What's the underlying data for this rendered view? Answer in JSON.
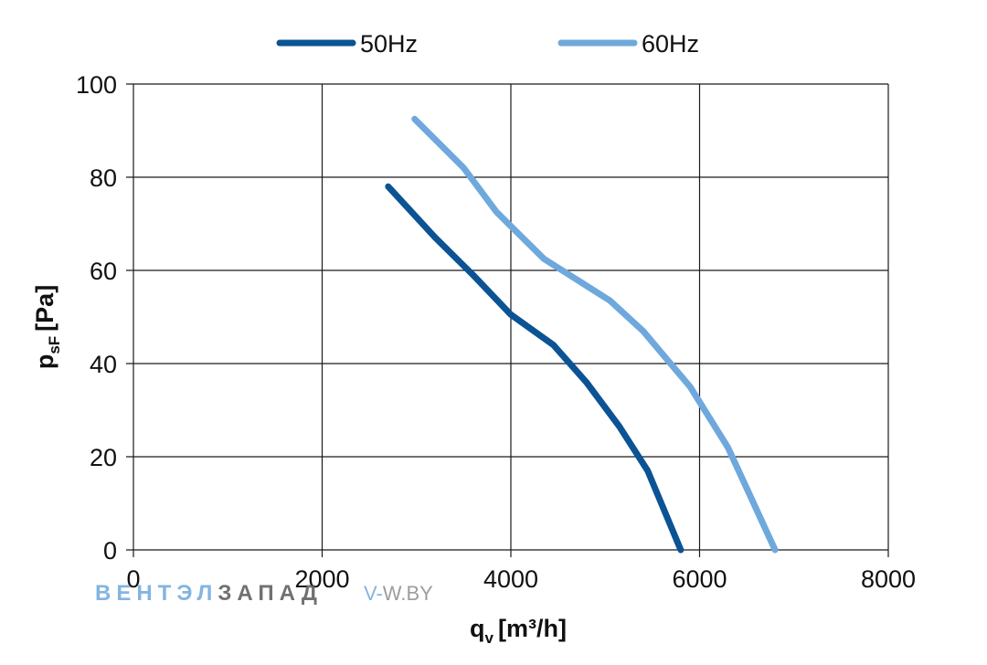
{
  "chart_data": {
    "type": "line",
    "xlabel": "q",
    "xlabel_sub": "v",
    "xlabel_unit": "[m³/h]",
    "ylabel": "p",
    "ylabel_sub": "sF",
    "ylabel_unit": "[Pa]",
    "xlim": [
      0,
      8000
    ],
    "ylim": [
      0,
      100
    ],
    "x_ticks": [
      "0",
      "2000",
      "4000",
      "6000",
      "8000"
    ],
    "y_ticks": [
      "0",
      "20",
      "40",
      "60",
      "80",
      "100"
    ],
    "grid": true,
    "legend_position": "top",
    "series": [
      {
        "name": "50Hz",
        "color": "#0b5394",
        "points": [
          [
            2700,
            78
          ],
          [
            3200,
            67
          ],
          [
            3600,
            59
          ],
          [
            4000,
            50.5
          ],
          [
            4450,
            44
          ],
          [
            4800,
            36
          ],
          [
            5150,
            26.5
          ],
          [
            5450,
            17
          ],
          [
            5800,
            0
          ]
        ]
      },
      {
        "name": "60Hz",
        "color": "#6fa8dc",
        "points": [
          [
            2980,
            92.5
          ],
          [
            3500,
            82
          ],
          [
            3850,
            72.5
          ],
          [
            4350,
            62.5
          ],
          [
            4700,
            58
          ],
          [
            5050,
            53.5
          ],
          [
            5400,
            47
          ],
          [
            5900,
            35
          ],
          [
            6300,
            22
          ],
          [
            6800,
            0
          ]
        ]
      }
    ]
  },
  "watermark": {
    "brand_part1": "ВЕНТЭЛ",
    "brand_part2": "ЗАПАД",
    "site_prefix": "V-",
    "site_suffix": "W.BY",
    "color_light": "#6fa8dc",
    "color_dark": "#595959"
  }
}
